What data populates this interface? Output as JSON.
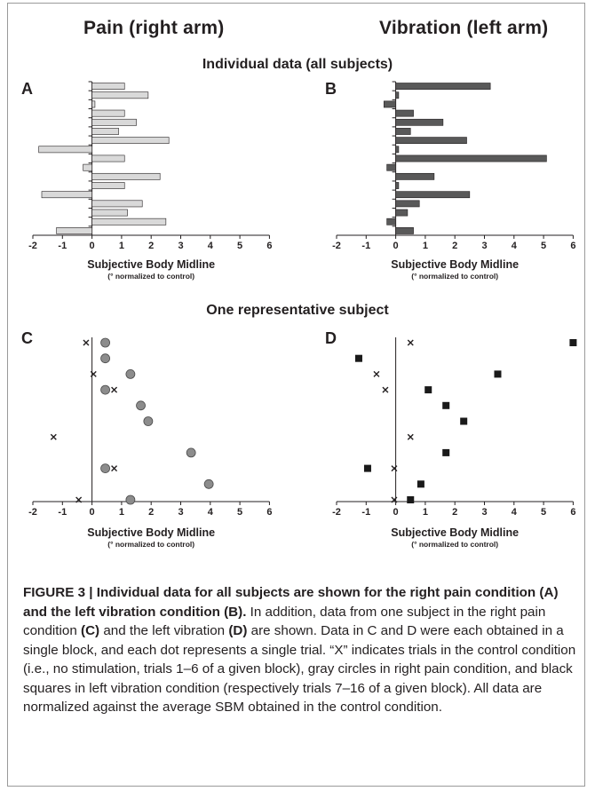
{
  "titles": {
    "left_column": "Pain (right arm)",
    "right_column": "Vibration (left arm)",
    "row1": "Individual data (all subjects)",
    "row2": "One representative subject"
  },
  "colors": {
    "pain_bar_fill": "#d9d9d9",
    "vibration_bar_fill": "#595959",
    "pain_circle_fill": "#8c8c8c",
    "vibration_square_fill": "#1a1a1a",
    "axis": "#231f20"
  },
  "chart_data": [
    {
      "panel": "A",
      "type": "bar",
      "orientation": "horizontal",
      "xlabel": "Subjective Body Midline",
      "xlabel_note": "(° normalized to control)",
      "xlim": [
        -2,
        6
      ],
      "xticks": [
        "-2",
        "-1",
        "0",
        "1",
        "2",
        "3",
        "4",
        "5",
        "6"
      ],
      "values": [
        1.1,
        1.9,
        0.1,
        1.1,
        1.5,
        0.9,
        2.6,
        -1.8,
        1.1,
        -0.3,
        2.3,
        1.1,
        -1.7,
        1.7,
        1.2,
        2.5,
        -1.2
      ]
    },
    {
      "panel": "B",
      "type": "bar",
      "orientation": "horizontal",
      "xlabel": "Subjective Body Midline",
      "xlabel_note": "(° normalized to control)",
      "xlim": [
        -2,
        6
      ],
      "xticks": [
        "-2",
        "-1",
        "0",
        "1",
        "2",
        "3",
        "4",
        "5",
        "6"
      ],
      "values": [
        3.2,
        0.1,
        -0.4,
        0.6,
        1.6,
        0.5,
        2.4,
        0.1,
        5.1,
        -0.3,
        1.3,
        0.1,
        2.5,
        0.8,
        0.4,
        -0.3,
        0.6
      ]
    },
    {
      "panel": "C",
      "type": "scatter",
      "xlabel": "Subjective Body Midline",
      "xlabel_note": "(° normalized to control)",
      "xlim": [
        -2,
        6
      ],
      "xticks": [
        "-2",
        "-1",
        "0",
        "1",
        "2",
        "3",
        "4",
        "5",
        "6"
      ],
      "rows": 10,
      "series": [
        {
          "marker": "x",
          "points": [
            {
              "x": -0.2,
              "row": 0
            },
            {
              "x": 0.05,
              "row": 2
            },
            {
              "x": 0.75,
              "row": 3
            },
            {
              "x": -1.3,
              "row": 6
            },
            {
              "x": 0.75,
              "row": 8
            },
            {
              "x": -0.45,
              "row": 10
            }
          ]
        },
        {
          "marker": "circle",
          "points": [
            {
              "x": 0.45,
              "row": 0
            },
            {
              "x": 0.45,
              "row": 1
            },
            {
              "x": 1.3,
              "row": 2
            },
            {
              "x": 0.45,
              "row": 3
            },
            {
              "x": 1.65,
              "row": 4
            },
            {
              "x": 1.9,
              "row": 5
            },
            {
              "x": 3.35,
              "row": 7
            },
            {
              "x": 0.45,
              "row": 8
            },
            {
              "x": 3.95,
              "row": 9
            },
            {
              "x": 1.3,
              "row": 10
            }
          ]
        }
      ]
    },
    {
      "panel": "D",
      "type": "scatter",
      "xlabel": "Subjective Body Midline",
      "xlabel_note": "(° normalized to control)",
      "xlim": [
        -2,
        6
      ],
      "xticks": [
        "-2",
        "-1",
        "0",
        "1",
        "2",
        "3",
        "4",
        "5",
        "6"
      ],
      "rows": 10,
      "series": [
        {
          "marker": "x",
          "points": [
            {
              "x": 0.5,
              "row": 0
            },
            {
              "x": -0.65,
              "row": 2
            },
            {
              "x": -0.35,
              "row": 3
            },
            {
              "x": 0.5,
              "row": 6
            },
            {
              "x": -0.05,
              "row": 8
            },
            {
              "x": -0.05,
              "row": 10
            }
          ]
        },
        {
          "marker": "square",
          "points": [
            {
              "x": 6.0,
              "row": 0
            },
            {
              "x": -1.25,
              "row": 1
            },
            {
              "x": 3.45,
              "row": 2
            },
            {
              "x": 1.1,
              "row": 3
            },
            {
              "x": 1.7,
              "row": 4
            },
            {
              "x": 2.3,
              "row": 5
            },
            {
              "x": 1.7,
              "row": 7
            },
            {
              "x": -0.95,
              "row": 8
            },
            {
              "x": 0.85,
              "row": 9
            },
            {
              "x": 0.5,
              "row": 10
            }
          ]
        }
      ]
    }
  ],
  "caption": {
    "bold_lead": "FIGURE 3 | Individual data for all subjects are shown for the right pain condition (A) and the left vibration condition (B).",
    "text_1": " In addition, data from one subject in the right pain condition ",
    "bold_c": "(C)",
    "text_2": " and the left vibration ",
    "bold_d": "(D)",
    "text_3": " are shown. Data in C and D were each obtained in a single block, and each dot represents a single trial. “X” indicates trials in the control condition (i.e., no stimulation, trials 1–6 of a given block), gray circles in right pain condition, and black squares in left vibration condition (respectively trials 7–16 of a given block). All data are normalized against the average SBM obtained in the control condition."
  }
}
